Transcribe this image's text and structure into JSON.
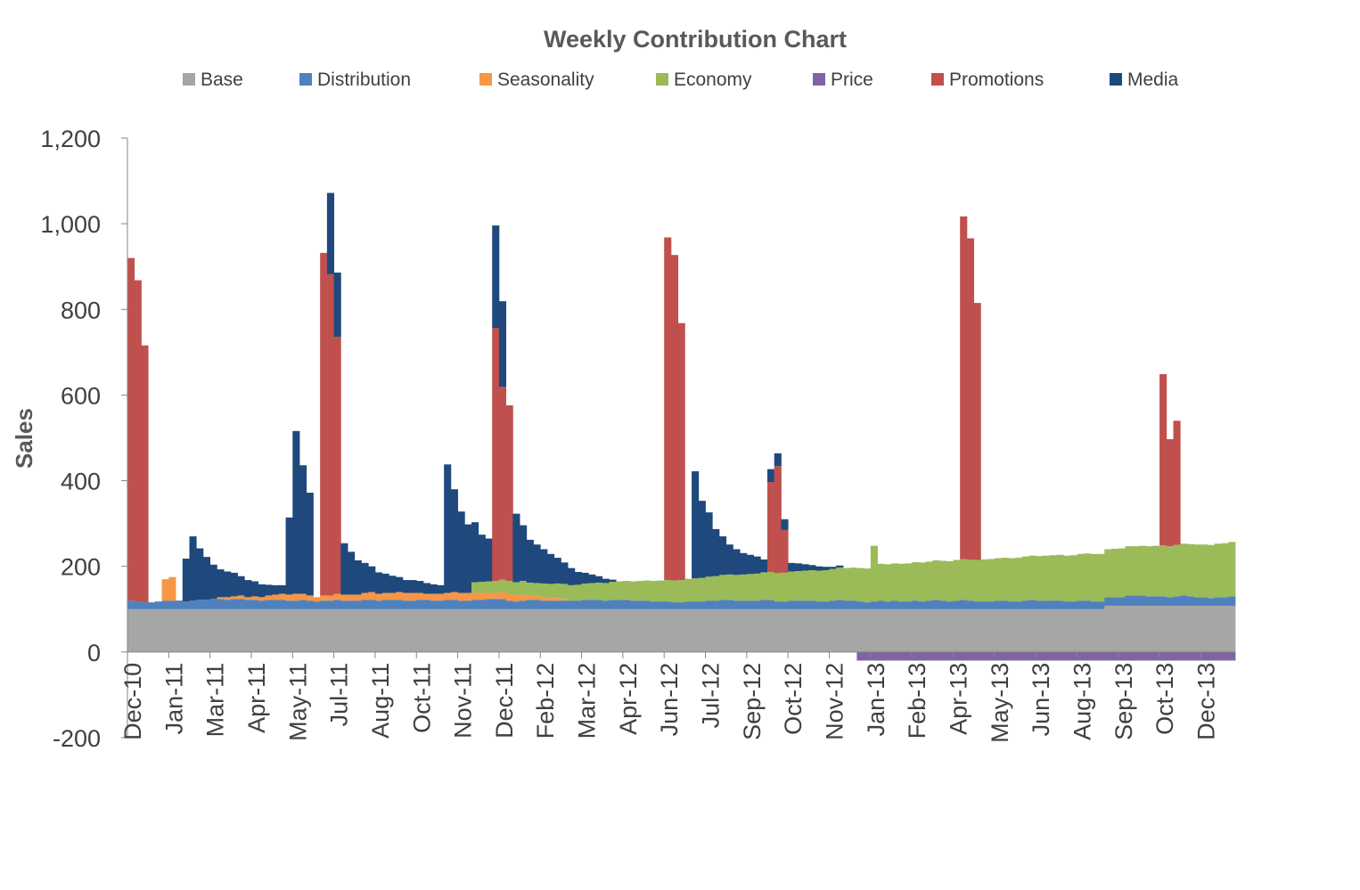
{
  "chart_data": {
    "type": "bar",
    "stacked": true,
    "title": "Weekly Contribution Chart",
    "xlabel": "",
    "ylabel": "Sales",
    "ylim": [
      -200,
      1200
    ],
    "yticks": [
      -200,
      0,
      200,
      400,
      600,
      800,
      1000,
      1200
    ],
    "ytick_labels": [
      "-200",
      "0",
      "200",
      "400",
      "600",
      "800",
      "1,000",
      "1,200"
    ],
    "legend_position": "top",
    "grid": false,
    "x_tick_labels": [
      "Dec-10",
      "Jan-11",
      "Mar-11",
      "Apr-11",
      "May-11",
      "Jul-11",
      "Aug-11",
      "Oct-11",
      "Nov-11",
      "Dec-11",
      "Feb-12",
      "Mar-12",
      "Apr-12",
      "Jun-12",
      "Jul-12",
      "Sep-12",
      "Oct-12",
      "Nov-12",
      "Jan-13",
      "Feb-13",
      "Apr-13",
      "May-13",
      "Jun-13",
      "Aug-13",
      "Sep-13",
      "Oct-13",
      "Dec-13"
    ],
    "x_tick_weeks": [
      0,
      6,
      12,
      18,
      24,
      30,
      36,
      42,
      48,
      54,
      60,
      66,
      72,
      78,
      84,
      90,
      96,
      102,
      108,
      114,
      120,
      126,
      132,
      138,
      144,
      150,
      156
    ],
    "weeks": 161,
    "series": [
      {
        "name": "Base",
        "color": "#A6A6A6",
        "values": [
          100,
          100,
          100,
          100,
          100,
          100,
          100,
          100,
          100,
          100,
          100,
          100,
          100,
          100,
          100,
          100,
          100,
          100,
          100,
          100,
          100,
          100,
          100,
          100,
          100,
          100,
          100,
          100,
          100,
          100,
          100,
          100,
          100,
          100,
          100,
          100,
          100,
          100,
          100,
          100,
          100,
          100,
          100,
          100,
          100,
          100,
          100,
          100,
          100,
          100,
          100,
          100,
          100,
          100,
          100,
          100,
          100,
          100,
          100,
          100,
          100,
          100,
          100,
          100,
          100,
          100,
          100,
          100,
          100,
          100,
          100,
          100,
          100,
          100,
          100,
          100,
          100,
          100,
          100,
          100,
          100,
          100,
          100,
          100,
          100,
          100,
          100,
          100,
          100,
          100,
          100,
          100,
          100,
          100,
          100,
          100,
          100,
          100,
          100,
          100,
          100,
          100,
          100,
          100,
          100,
          100,
          100,
          100,
          100,
          100,
          100,
          100,
          100,
          100,
          100,
          100,
          100,
          100,
          100,
          100,
          100,
          100,
          100,
          100,
          100,
          100,
          100,
          100,
          100,
          100,
          100,
          100,
          100,
          100,
          100,
          100,
          100,
          100,
          100,
          100,
          100,
          100,
          108,
          108,
          108,
          108,
          108,
          108,
          108,
          108,
          108,
          108,
          108,
          108,
          108,
          108,
          108,
          108,
          108,
          108,
          108
        ]
      },
      {
        "name": "Distribution",
        "color": "#4F81BD",
        "values": [
          20,
          18,
          16,
          16,
          18,
          20,
          20,
          20,
          18,
          20,
          22,
          22,
          24,
          24,
          22,
          24,
          24,
          22,
          22,
          20,
          22,
          22,
          22,
          20,
          20,
          22,
          20,
          18,
          20,
          20,
          22,
          20,
          20,
          20,
          22,
          22,
          20,
          22,
          22,
          22,
          20,
          20,
          22,
          22,
          20,
          20,
          22,
          22,
          20,
          20,
          22,
          22,
          24,
          24,
          24,
          20,
          18,
          20,
          22,
          22,
          20,
          20,
          20,
          20,
          20,
          20,
          22,
          22,
          22,
          20,
          22,
          22,
          22,
          20,
          20,
          20,
          18,
          18,
          18,
          16,
          16,
          18,
          18,
          18,
          20,
          20,
          22,
          22,
          20,
          20,
          20,
          20,
          22,
          22,
          18,
          18,
          20,
          20,
          20,
          20,
          18,
          18,
          20,
          22,
          20,
          20,
          18,
          16,
          18,
          20,
          18,
          20,
          18,
          18,
          20,
          18,
          20,
          22,
          20,
          18,
          20,
          22,
          20,
          18,
          18,
          18,
          20,
          20,
          18,
          18,
          20,
          22,
          20,
          20,
          20,
          20,
          18,
          18,
          20,
          20,
          18,
          18,
          20,
          20,
          20,
          24,
          24,
          24,
          22,
          22,
          22,
          20,
          22,
          24,
          22,
          20,
          20,
          18,
          20,
          20,
          22
        ]
      },
      {
        "name": "Seasonality",
        "color": "#F79646",
        "values": [
          0,
          0,
          0,
          0,
          0,
          50,
          55,
          0,
          0,
          0,
          0,
          0,
          0,
          4,
          6,
          6,
          8,
          6,
          8,
          8,
          10,
          12,
          14,
          14,
          16,
          14,
          12,
          10,
          12,
          12,
          14,
          14,
          14,
          14,
          16,
          18,
          16,
          16,
          16,
          18,
          18,
          18,
          16,
          14,
          16,
          16,
          16,
          18,
          18,
          18,
          16,
          16,
          14,
          14,
          16,
          16,
          14,
          14,
          10,
          8,
          8,
          6,
          6,
          4,
          0,
          0,
          0,
          0,
          0,
          0,
          0,
          0,
          0,
          0,
          0,
          0,
          0,
          0,
          0,
          0,
          0,
          0,
          0,
          0,
          0,
          0,
          0,
          0,
          0,
          0,
          0,
          0,
          0,
          0,
          0,
          0,
          0,
          0,
          0,
          0,
          0,
          0,
          0,
          0,
          0,
          0,
          0,
          0,
          0,
          0,
          0,
          0,
          0,
          0,
          0,
          0,
          0,
          0,
          0,
          0,
          0,
          0,
          0,
          0,
          0,
          0,
          0,
          0,
          0,
          0,
          0,
          0,
          0,
          0,
          0,
          0,
          0,
          0,
          0,
          0,
          0,
          0,
          0,
          0,
          0,
          0,
          0,
          0,
          0,
          0,
          0,
          0,
          0,
          0,
          0,
          0,
          0,
          0,
          0,
          0,
          0
        ]
      },
      {
        "name": "Economy",
        "color": "#9BBB59",
        "values": [
          0,
          0,
          0,
          0,
          0,
          0,
          0,
          0,
          0,
          0,
          0,
          0,
          0,
          0,
          0,
          0,
          0,
          0,
          0,
          0,
          0,
          0,
          0,
          0,
          0,
          0,
          0,
          0,
          0,
          0,
          0,
          0,
          0,
          0,
          0,
          0,
          0,
          0,
          0,
          0,
          0,
          0,
          0,
          0,
          0,
          0,
          0,
          0,
          0,
          0,
          0,
          0,
          0,
          0,
          0,
          0,
          0,
          0,
          0,
          0,
          0,
          0,
          0,
          0,
          0,
          0,
          0,
          0,
          0,
          0,
          0,
          0,
          0,
          0,
          0,
          0,
          0,
          0,
          0,
          0,
          0,
          0,
          0,
          0,
          0,
          0,
          0,
          0,
          0,
          0,
          0,
          0,
          0,
          0,
          0,
          0,
          0,
          0,
          0,
          0,
          0,
          0,
          0,
          0,
          0,
          0,
          0,
          0,
          0,
          0,
          0,
          0,
          0,
          0,
          0,
          0,
          0,
          0,
          0,
          0,
          0,
          0,
          0,
          0,
          0,
          0,
          0,
          0,
          0,
          0,
          0,
          0,
          0,
          0,
          0,
          0,
          0,
          0,
          0,
          0,
          0,
          0,
          0,
          0,
          0,
          0,
          0,
          0,
          0,
          0,
          0,
          0,
          0,
          0,
          0,
          0,
          0,
          0,
          0,
          0,
          0
        ]
      },
      {
        "name": "Price",
        "color": "#8064A2",
        "values": [
          0,
          0,
          0,
          0,
          0,
          0,
          0,
          0,
          0,
          0,
          0,
          0,
          0,
          0,
          0,
          0,
          0,
          0,
          0,
          0,
          0,
          0,
          0,
          0,
          0,
          0,
          0,
          0,
          0,
          0,
          0,
          0,
          0,
          0,
          0,
          0,
          0,
          0,
          0,
          0,
          0,
          0,
          0,
          0,
          0,
          0,
          0,
          0,
          0,
          0,
          0,
          0,
          0,
          0,
          0,
          0,
          0,
          0,
          0,
          0,
          0,
          0,
          0,
          0,
          0,
          0,
          0,
          0,
          0,
          0,
          0,
          0,
          0,
          0,
          0,
          0,
          0,
          0,
          0,
          0,
          0,
          0,
          0,
          0,
          0,
          0,
          0,
          0,
          0,
          0,
          0,
          0,
          0,
          0,
          0,
          0,
          0,
          0,
          0,
          0,
          0,
          0,
          0,
          0,
          0,
          0,
          -20,
          -20,
          -20,
          -20,
          -20,
          -20,
          -20,
          -20,
          -20,
          -20,
          -20,
          -20,
          -20,
          -20,
          -20,
          -20,
          -20,
          -20,
          -20,
          -20,
          -20,
          -20,
          -20,
          -20,
          -20,
          -20,
          -20,
          -20,
          -20,
          -20,
          -20,
          -20,
          -20,
          -20,
          -20,
          -20,
          -20,
          -20,
          -20,
          -20,
          -20,
          -20,
          -20,
          -20,
          -20,
          -20,
          -20,
          -20,
          -20,
          -20,
          -20,
          -20,
          -20,
          -20,
          -20,
          -20,
          -20,
          -20,
          -20,
          -20,
          -20
        ]
      },
      {
        "name": "Promotions",
        "color": "#C0504D",
        "values": [
          800,
          750,
          600,
          0,
          0,
          0,
          0,
          0,
          0,
          0,
          0,
          0,
          0,
          0,
          0,
          0,
          0,
          0,
          0,
          0,
          0,
          0,
          0,
          0,
          0,
          0,
          0,
          0,
          800,
          750,
          600,
          0,
          0,
          0,
          0,
          0,
          0,
          0,
          0,
          0,
          0,
          0,
          0,
          0,
          0,
          0,
          0,
          0,
          0,
          0,
          0,
          0,
          0,
          590,
          450,
          410,
          0,
          0,
          0,
          0,
          0,
          0,
          0,
          0,
          0,
          0,
          0,
          0,
          0,
          0,
          0,
          0,
          0,
          0,
          0,
          0,
          0,
          0,
          800,
          760,
          600,
          0,
          0,
          0,
          0,
          0,
          0,
          0,
          0,
          0,
          0,
          0,
          0,
          210,
          250,
          100,
          0,
          0,
          0,
          0,
          0,
          0,
          0,
          0,
          0,
          0,
          0,
          0,
          0,
          0,
          0,
          0,
          0,
          0,
          0,
          0,
          0,
          0,
          0,
          0,
          0,
          800,
          750,
          600,
          0,
          0,
          0,
          0,
          0,
          0,
          0,
          0,
          0,
          0,
          0,
          0,
          0,
          0,
          0,
          0,
          0,
          0,
          0,
          0,
          0,
          0,
          0,
          0,
          0,
          0,
          400,
          250,
          290,
          0,
          0,
          0,
          0,
          0,
          0,
          0,
          0,
          0,
          0,
          800,
          750,
          600,
          0,
          0,
          0
        ]
      },
      {
        "name": "Media",
        "color": "#1F497D",
        "values": [
          0,
          0,
          0,
          0,
          0,
          0,
          0,
          0,
          100,
          150,
          120,
          100,
          80,
          65,
          60,
          55,
          45,
          40,
          35,
          30,
          25,
          22,
          20,
          180,
          380,
          300,
          240,
          0,
          0,
          190,
          150,
          120,
          100,
          80,
          70,
          60,
          50,
          45,
          40,
          35,
          30,
          30,
          28,
          25,
          22,
          20,
          300,
          240,
          190,
          160,
          140,
          110,
          100,
          240,
          200,
          0,
          160,
          130,
          100,
          90,
          80,
          70,
          60,
          50,
          40,
          30,
          25,
          20,
          15,
          10,
          5,
          0,
          0,
          0,
          0,
          0,
          0,
          0,
          0,
          0,
          0,
          0,
          250,
          180,
          150,
          110,
          90,
          70,
          60,
          50,
          45,
          40,
          30,
          30,
          30,
          25,
          20,
          18,
          15,
          12,
          10,
          8,
          5,
          5,
          0,
          0,
          0,
          0,
          0,
          0,
          0,
          0,
          0,
          0,
          0,
          0,
          0,
          0,
          0,
          0,
          0,
          0,
          0,
          0,
          0,
          0,
          0,
          0,
          0,
          0,
          0,
          0,
          0,
          0,
          0,
          0,
          0,
          0,
          0,
          0,
          0,
          0,
          0,
          0,
          0,
          0,
          0,
          0,
          0,
          0,
          0,
          0,
          0,
          0,
          0,
          0,
          0,
          0,
          0,
          0,
          0,
          0
        ]
      }
    ]
  }
}
